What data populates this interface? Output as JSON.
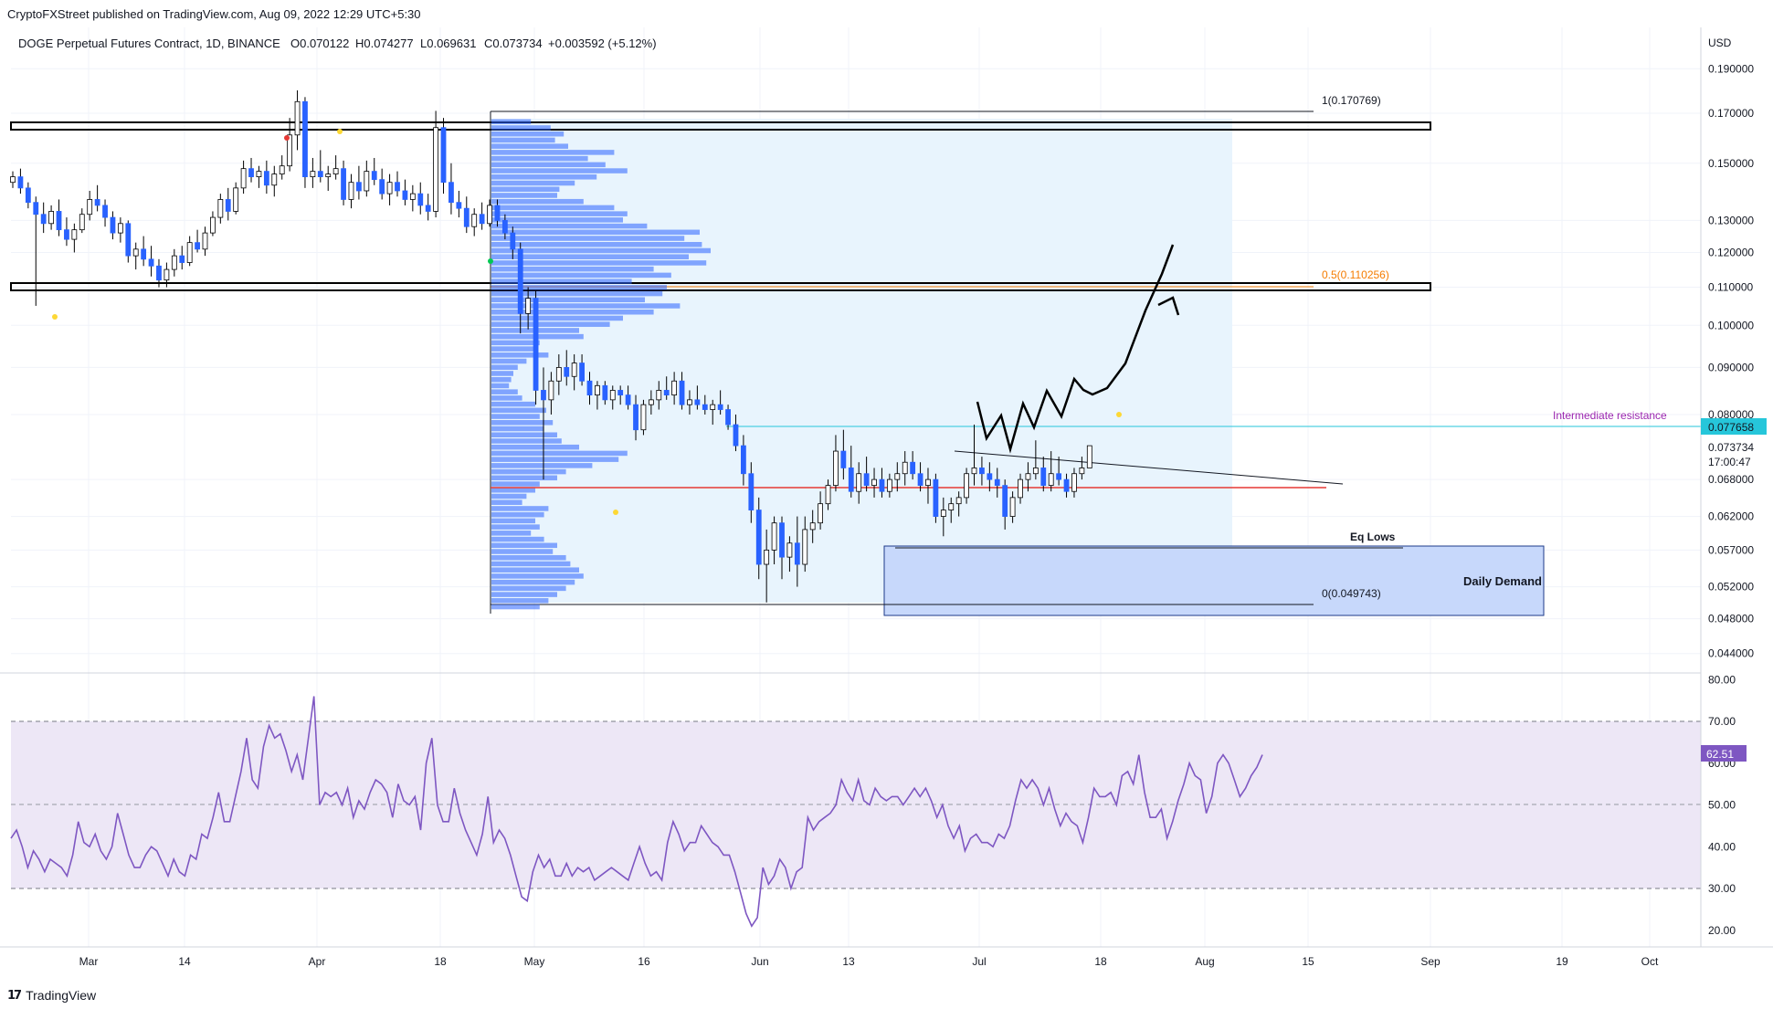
{
  "header": {
    "published": "CryptoFXStreet published on TradingView.com, Aug 09, 2022 12:29 UTC+5:30"
  },
  "footer": {
    "logo_text": "TradingView"
  },
  "colors": {
    "up": "#ffffff",
    "down": "#2962ff",
    "candle_outline": "#000000",
    "rsi": "#7e57c2",
    "rsi_band": "#ede7f6",
    "fib_zone": "#e3f2fd",
    "demand": "#c5d7fb",
    "poc": "#e53935",
    "resistance": "#26c6da",
    "price_tag": "#26c6da",
    "intermediate_label": "#9c27b0",
    "fib_half": "#f57c00"
  },
  "chart_data": {
    "type": "candlestick",
    "title": "DOGE Perpetual Futures Contract, 1D, BINANCE",
    "ohlc_header": {
      "o": "O0.070122",
      "h": "H0.074277",
      "l": "L0.069631",
      "c": "C0.073734",
      "chg": "+0.003592 (+5.12%)"
    },
    "price_axis": {
      "unit": "USD",
      "scale": "log",
      "ticks": [
        "0.190000",
        "0.170000",
        "0.150000",
        "0.130000",
        "0.120000",
        "0.110000",
        "0.100000",
        "0.090000",
        "0.080000",
        "0.068000",
        "0.062000",
        "0.057000",
        "0.052000",
        "0.048000",
        "0.044000"
      ],
      "last_price": "0.073734",
      "countdown": "17:00:47",
      "resistance_tag": "0.077658"
    },
    "time_axis": [
      "Mar",
      "14",
      "Apr",
      "18",
      "May",
      "16",
      "Jun",
      "13",
      "Jul",
      "18",
      "Aug",
      "15",
      "Sep",
      "19",
      "Oct"
    ],
    "annotations": {
      "fib_top": "1(0.170769)",
      "fib_half": "0.5(0.110256)",
      "fib_bottom": "0(0.049743)",
      "intermediate": "Intermediate resistance",
      "eq_lows": "Eq Lows",
      "daily_demand": "Daily Demand"
    },
    "rsi": {
      "last_value": "62.51",
      "ticks": [
        "80.00",
        "70.00",
        "60.00",
        "50.00",
        "40.00",
        "30.00",
        "20.00"
      ],
      "values": [
        42,
        44,
        40,
        35,
        39,
        37,
        34,
        37,
        36,
        35,
        33,
        38,
        46,
        41,
        40,
        43,
        39,
        37,
        40,
        48,
        43,
        38,
        35,
        35,
        38,
        40,
        39,
        36,
        33,
        37,
        34,
        33,
        38,
        37,
        43,
        42,
        47,
        53,
        46,
        46,
        52,
        58,
        66,
        56,
        54,
        64,
        69,
        66,
        67,
        63,
        58,
        62,
        56,
        66,
        76,
        50,
        53,
        52,
        53,
        50,
        54,
        47,
        51,
        49,
        53,
        56,
        55,
        53,
        47,
        55,
        51,
        50,
        52,
        44,
        60,
        66,
        50,
        46,
        46,
        54,
        48,
        44,
        41,
        38,
        43,
        52,
        41,
        44,
        42,
        38,
        33,
        28,
        27,
        34,
        38,
        35,
        37,
        33,
        33,
        36,
        33,
        35,
        34,
        35,
        32,
        33,
        34,
        35,
        34,
        33,
        32,
        36,
        40,
        36,
        33,
        34,
        32,
        41,
        46,
        43,
        39,
        41,
        41,
        45,
        43,
        41,
        40,
        38,
        38,
        34,
        29,
        24,
        21,
        23,
        35,
        31,
        33,
        37,
        35,
        30,
        34,
        35,
        47,
        44,
        46,
        47,
        48,
        50,
        56,
        53,
        51,
        56,
        51,
        50,
        54,
        52,
        51,
        52,
        52,
        50,
        52,
        54,
        52,
        54,
        51,
        47,
        50,
        45,
        42,
        45,
        39,
        42,
        43,
        41,
        41,
        40,
        43,
        42,
        45,
        51,
        56,
        54,
        56,
        54,
        50,
        54,
        49,
        45,
        48,
        46,
        45,
        41,
        47,
        54,
        52,
        52,
        53,
        50,
        57,
        58,
        55,
        62,
        53,
        47,
        47,
        49,
        42,
        46,
        51,
        55,
        60,
        57,
        56,
        48,
        52,
        60,
        62,
        60,
        56,
        52,
        54,
        57,
        59,
        62
      ]
    },
    "candles": [
      [
        0.143,
        0.147,
        0.141,
        0.145
      ],
      [
        0.145,
        0.148,
        0.139,
        0.141
      ],
      [
        0.141,
        0.143,
        0.134,
        0.136
      ],
      [
        0.136,
        0.138,
        0.105,
        0.132
      ],
      [
        0.132,
        0.136,
        0.126,
        0.129
      ],
      [
        0.129,
        0.135,
        0.127,
        0.133
      ],
      [
        0.133,
        0.137,
        0.125,
        0.127
      ],
      [
        0.127,
        0.131,
        0.122,
        0.124
      ],
      [
        0.124,
        0.129,
        0.12,
        0.127
      ],
      [
        0.127,
        0.134,
        0.126,
        0.132
      ],
      [
        0.132,
        0.14,
        0.13,
        0.137
      ],
      [
        0.137,
        0.142,
        0.133,
        0.135
      ],
      [
        0.135,
        0.137,
        0.128,
        0.131
      ],
      [
        0.131,
        0.133,
        0.124,
        0.126
      ],
      [
        0.126,
        0.131,
        0.123,
        0.129
      ],
      [
        0.129,
        0.13,
        0.117,
        0.119
      ],
      [
        0.119,
        0.123,
        0.115,
        0.121
      ],
      [
        0.121,
        0.125,
        0.116,
        0.118
      ],
      [
        0.118,
        0.122,
        0.113,
        0.116
      ],
      [
        0.116,
        0.118,
        0.11,
        0.112
      ],
      [
        0.112,
        0.117,
        0.11,
        0.115
      ],
      [
        0.115,
        0.121,
        0.113,
        0.119
      ],
      [
        0.119,
        0.122,
        0.115,
        0.117
      ],
      [
        0.117,
        0.125,
        0.116,
        0.123
      ],
      [
        0.123,
        0.127,
        0.12,
        0.121
      ],
      [
        0.121,
        0.128,
        0.119,
        0.126
      ],
      [
        0.126,
        0.133,
        0.125,
        0.131
      ],
      [
        0.131,
        0.139,
        0.129,
        0.137
      ],
      [
        0.137,
        0.141,
        0.13,
        0.133
      ],
      [
        0.133,
        0.143,
        0.132,
        0.141
      ],
      [
        0.141,
        0.151,
        0.139,
        0.148
      ],
      [
        0.148,
        0.152,
        0.143,
        0.145
      ],
      [
        0.145,
        0.149,
        0.141,
        0.147
      ],
      [
        0.147,
        0.151,
        0.139,
        0.142
      ],
      [
        0.142,
        0.149,
        0.138,
        0.146
      ],
      [
        0.146,
        0.153,
        0.144,
        0.149
      ],
      [
        0.149,
        0.168,
        0.147,
        0.161
      ],
      [
        0.161,
        0.18,
        0.155,
        0.175
      ],
      [
        0.175,
        0.177,
        0.141,
        0.145
      ],
      [
        0.145,
        0.152,
        0.141,
        0.147
      ],
      [
        0.147,
        0.155,
        0.143,
        0.145
      ],
      [
        0.145,
        0.149,
        0.14,
        0.146
      ],
      [
        0.146,
        0.153,
        0.144,
        0.148
      ],
      [
        0.148,
        0.151,
        0.135,
        0.137
      ],
      [
        0.137,
        0.146,
        0.134,
        0.143
      ],
      [
        0.143,
        0.149,
        0.137,
        0.14
      ],
      [
        0.14,
        0.151,
        0.138,
        0.147
      ],
      [
        0.147,
        0.152,
        0.142,
        0.144
      ],
      [
        0.144,
        0.148,
        0.137,
        0.139
      ],
      [
        0.139,
        0.146,
        0.135,
        0.143
      ],
      [
        0.143,
        0.147,
        0.138,
        0.14
      ],
      [
        0.14,
        0.144,
        0.135,
        0.137
      ],
      [
        0.137,
        0.142,
        0.133,
        0.139
      ],
      [
        0.139,
        0.143,
        0.132,
        0.135
      ],
      [
        0.135,
        0.139,
        0.13,
        0.133
      ],
      [
        0.133,
        0.171,
        0.131,
        0.164
      ],
      [
        0.164,
        0.168,
        0.139,
        0.143
      ],
      [
        0.143,
        0.15,
        0.132,
        0.136
      ],
      [
        0.136,
        0.14,
        0.131,
        0.134
      ],
      [
        0.134,
        0.138,
        0.126,
        0.128
      ],
      [
        0.128,
        0.134,
        0.125,
        0.132
      ],
      [
        0.132,
        0.136,
        0.127,
        0.129
      ],
      [
        0.129,
        0.137,
        0.128,
        0.135
      ],
      [
        0.135,
        0.137,
        0.128,
        0.13
      ],
      [
        0.13,
        0.132,
        0.124,
        0.126
      ],
      [
        0.126,
        0.128,
        0.118,
        0.121
      ],
      [
        0.121,
        0.123,
        0.098,
        0.103
      ],
      [
        0.103,
        0.11,
        0.099,
        0.107
      ],
      [
        0.107,
        0.109,
        0.082,
        0.085
      ],
      [
        0.085,
        0.09,
        0.068,
        0.083
      ],
      [
        0.083,
        0.089,
        0.08,
        0.087
      ],
      [
        0.087,
        0.093,
        0.084,
        0.09
      ],
      [
        0.09,
        0.094,
        0.086,
        0.088
      ],
      [
        0.088,
        0.093,
        0.085,
        0.091
      ],
      [
        0.091,
        0.093,
        0.086,
        0.087
      ],
      [
        0.087,
        0.089,
        0.082,
        0.084
      ],
      [
        0.084,
        0.087,
        0.081,
        0.086
      ],
      [
        0.086,
        0.087,
        0.082,
        0.083
      ],
      [
        0.083,
        0.086,
        0.081,
        0.085
      ],
      [
        0.085,
        0.086,
        0.082,
        0.084
      ],
      [
        0.084,
        0.086,
        0.081,
        0.082
      ],
      [
        0.082,
        0.084,
        0.075,
        0.077
      ],
      [
        0.077,
        0.083,
        0.076,
        0.082
      ],
      [
        0.082,
        0.085,
        0.08,
        0.083
      ],
      [
        0.083,
        0.087,
        0.081,
        0.085
      ],
      [
        0.085,
        0.088,
        0.083,
        0.084
      ],
      [
        0.084,
        0.089,
        0.082,
        0.087
      ],
      [
        0.087,
        0.089,
        0.081,
        0.082
      ],
      [
        0.082,
        0.085,
        0.08,
        0.083
      ],
      [
        0.083,
        0.086,
        0.081,
        0.082
      ],
      [
        0.082,
        0.084,
        0.08,
        0.081
      ],
      [
        0.081,
        0.083,
        0.078,
        0.082
      ],
      [
        0.082,
        0.085,
        0.08,
        0.081
      ],
      [
        0.081,
        0.082,
        0.077,
        0.078
      ],
      [
        0.078,
        0.08,
        0.073,
        0.074
      ],
      [
        0.074,
        0.076,
        0.067,
        0.069
      ],
      [
        0.069,
        0.071,
        0.061,
        0.063
      ],
      [
        0.063,
        0.065,
        0.053,
        0.055
      ],
      [
        0.055,
        0.06,
        0.05,
        0.057
      ],
      [
        0.057,
        0.062,
        0.055,
        0.061
      ],
      [
        0.061,
        0.062,
        0.053,
        0.056
      ],
      [
        0.056,
        0.059,
        0.054,
        0.058
      ],
      [
        0.058,
        0.062,
        0.052,
        0.055
      ],
      [
        0.055,
        0.062,
        0.054,
        0.06
      ],
      [
        0.06,
        0.063,
        0.058,
        0.061
      ],
      [
        0.061,
        0.066,
        0.06,
        0.064
      ],
      [
        0.064,
        0.068,
        0.063,
        0.067
      ],
      [
        0.067,
        0.076,
        0.066,
        0.073
      ],
      [
        0.073,
        0.077,
        0.068,
        0.07
      ],
      [
        0.07,
        0.074,
        0.065,
        0.066
      ],
      [
        0.066,
        0.071,
        0.064,
        0.069
      ],
      [
        0.069,
        0.072,
        0.066,
        0.067
      ],
      [
        0.067,
        0.07,
        0.065,
        0.068
      ],
      [
        0.068,
        0.07,
        0.065,
        0.066
      ],
      [
        0.066,
        0.069,
        0.065,
        0.068
      ],
      [
        0.068,
        0.071,
        0.066,
        0.069
      ],
      [
        0.069,
        0.073,
        0.067,
        0.071
      ],
      [
        0.071,
        0.073,
        0.068,
        0.069
      ],
      [
        0.069,
        0.071,
        0.066,
        0.067
      ],
      [
        0.067,
        0.07,
        0.064,
        0.068
      ],
      [
        0.068,
        0.069,
        0.061,
        0.062
      ],
      [
        0.062,
        0.065,
        0.059,
        0.063
      ],
      [
        0.063,
        0.065,
        0.061,
        0.064
      ],
      [
        0.064,
        0.066,
        0.062,
        0.065
      ],
      [
        0.065,
        0.07,
        0.064,
        0.069
      ],
      [
        0.069,
        0.078,
        0.067,
        0.07
      ],
      [
        0.07,
        0.072,
        0.067,
        0.069
      ],
      [
        0.069,
        0.071,
        0.066,
        0.068
      ],
      [
        0.068,
        0.07,
        0.065,
        0.067
      ],
      [
        0.067,
        0.068,
        0.06,
        0.062
      ],
      [
        0.062,
        0.066,
        0.061,
        0.065
      ],
      [
        0.065,
        0.069,
        0.064,
        0.068
      ],
      [
        0.068,
        0.071,
        0.066,
        0.069
      ],
      [
        0.069,
        0.075,
        0.068,
        0.07
      ],
      [
        0.07,
        0.072,
        0.066,
        0.067
      ],
      [
        0.067,
        0.073,
        0.066,
        0.069
      ],
      [
        0.069,
        0.072,
        0.067,
        0.068
      ],
      [
        0.068,
        0.069,
        0.065,
        0.066
      ],
      [
        0.066,
        0.07,
        0.065,
        0.069
      ],
      [
        0.069,
        0.072,
        0.068,
        0.07
      ],
      [
        0.07,
        0.074,
        0.07,
        0.074
      ]
    ],
    "volume_profile": [
      0.18,
      0.27,
      0.33,
      0.29,
      0.35,
      0.56,
      0.44,
      0.52,
      0.62,
      0.48,
      0.38,
      0.31,
      0.3,
      0.42,
      0.56,
      0.62,
      0.6,
      0.71,
      0.95,
      0.88,
      0.96,
      1.0,
      0.9,
      0.98,
      0.74,
      0.82,
      0.64,
      0.8,
      0.78,
      0.7,
      0.86,
      0.74,
      0.6,
      0.54,
      0.4,
      0.42,
      0.22,
      0.2,
      0.26,
      0.16,
      0.12,
      0.1,
      0.09,
      0.08,
      0.12,
      0.14,
      0.2,
      0.25,
      0.22,
      0.28,
      0.24,
      0.3,
      0.32,
      0.4,
      0.62,
      0.58,
      0.46,
      0.34,
      0.3,
      0.22,
      0.2,
      0.16,
      0.14,
      0.26,
      0.24,
      0.2,
      0.22,
      0.18,
      0.24,
      0.3,
      0.28,
      0.34,
      0.36,
      0.4,
      0.42,
      0.38,
      0.34,
      0.3,
      0.26,
      0.22
    ],
    "projection_path": [
      [
        1070,
        440
      ],
      [
        1080,
        480
      ],
      [
        1096,
        455
      ],
      [
        1106,
        492
      ],
      [
        1120,
        442
      ],
      [
        1132,
        468
      ],
      [
        1146,
        428
      ],
      [
        1162,
        456
      ],
      [
        1176,
        415
      ],
      [
        1186,
        427
      ],
      [
        1196,
        432
      ],
      [
        1212,
        425
      ],
      [
        1232,
        398
      ],
      [
        1254,
        340
      ],
      [
        1272,
        300
      ],
      [
        1284,
        268
      ]
    ]
  }
}
